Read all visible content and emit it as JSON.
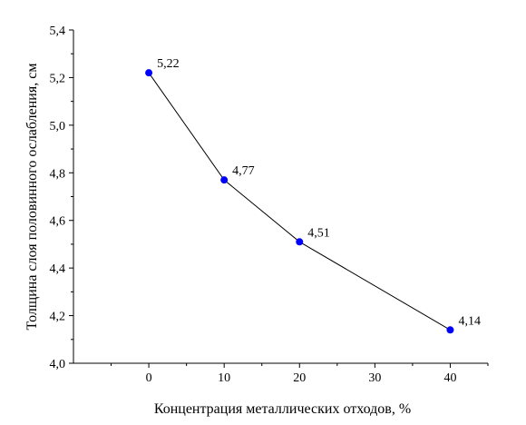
{
  "chart_data": {
    "type": "line",
    "title": "",
    "xlabel": "Концентрация металлических отходов, %",
    "ylabel": "Толщина слоя половинного ослабления, см",
    "x": [
      0,
      10,
      20,
      40
    ],
    "series": [
      {
        "values": [
          5.22,
          4.77,
          4.51,
          4.14
        ],
        "data_labels": [
          "5,22",
          "4,77",
          "4,51",
          "4,14"
        ]
      }
    ],
    "xlim": [
      -10,
      45
    ],
    "ylim": [
      4.0,
      5.4
    ],
    "x_ticks": [
      0,
      10,
      20,
      30,
      40
    ],
    "x_tick_labels": [
      "0",
      "10",
      "20",
      "30",
      "40"
    ],
    "y_ticks": [
      4.0,
      4.2,
      4.4,
      4.6,
      4.8,
      5.0,
      5.2,
      5.4
    ],
    "y_tick_labels": [
      "4,0",
      "4,2",
      "4,4",
      "4,6",
      "4,8",
      "5,0",
      "5,2",
      "5,4"
    ],
    "grid": false,
    "legend": "none",
    "colors": {
      "marker": "#0000ff",
      "line": "#000000",
      "axes": "#000000"
    }
  }
}
